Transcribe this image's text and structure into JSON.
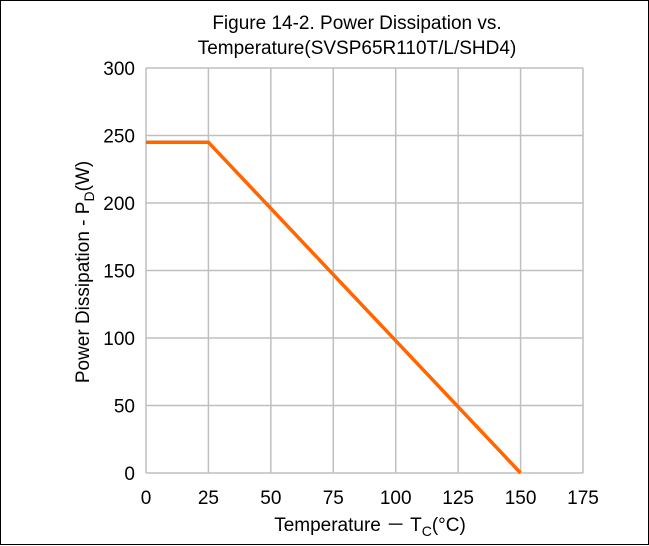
{
  "chart_data": {
    "type": "line",
    "title_line1": "Figure 14-2. Power Dissipation vs.",
    "title_line2": "Temperature(SVSP65R110T/L/SHD4)",
    "xlabel": {
      "main": "Temperature － T",
      "sub": "C",
      "tail": "(°C)"
    },
    "ylabel": {
      "main": "Power Dissipation - P",
      "sub": "D",
      "tail": "(W)"
    },
    "xlim": [
      0,
      175
    ],
    "ylim": [
      0,
      300
    ],
    "x_ticks": [
      0,
      25,
      50,
      75,
      100,
      125,
      150,
      175
    ],
    "y_ticks": [
      0,
      50,
      100,
      150,
      200,
      250,
      300
    ],
    "grid": true,
    "series": [
      {
        "points": [
          [
            0,
            245
          ],
          [
            25,
            245
          ],
          [
            150,
            0
          ]
        ],
        "color": "#ff6600"
      }
    ]
  }
}
